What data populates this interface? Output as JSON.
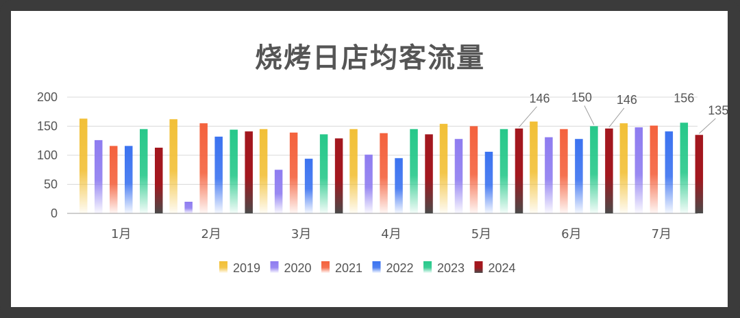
{
  "chart_data": {
    "type": "bar",
    "title": "烧烤日店均客流量",
    "categories": [
      "1月",
      "2月",
      "3月",
      "4月",
      "5月",
      "6月",
      "7月"
    ],
    "ylim": [
      0,
      200
    ],
    "yticks": [
      0,
      50,
      100,
      150,
      200
    ],
    "grid": true,
    "legend_position": "bottom",
    "series": [
      {
        "name": "2019",
        "color": "#F2C037",
        "values": [
          163,
          162,
          145,
          145,
          154,
          158,
          155
        ]
      },
      {
        "name": "2020",
        "color": "#8E7CF0",
        "values": [
          126,
          20,
          75,
          101,
          128,
          131,
          148
        ]
      },
      {
        "name": "2021",
        "color": "#F4623D",
        "values": [
          116,
          155,
          139,
          138,
          150,
          145,
          151
        ]
      },
      {
        "name": "2022",
        "color": "#3B73F0",
        "values": [
          116,
          132,
          94,
          95,
          106,
          128,
          141
        ]
      },
      {
        "name": "2023",
        "color": "#27C88A",
        "values": [
          145,
          144,
          136,
          145,
          145,
          150,
          156
        ]
      },
      {
        "name": "2024",
        "color": "#A3171E",
        "values": [
          113,
          141,
          129,
          136,
          146,
          146,
          135
        ]
      }
    ],
    "data_labels": [
      {
        "category": "5月",
        "series": "2024",
        "text": "146"
      },
      {
        "category": "6月",
        "series": "2023",
        "text": "150"
      },
      {
        "category": "6月",
        "series": "2024",
        "text": "146"
      },
      {
        "category": "7月",
        "series": "2023",
        "text": "156"
      },
      {
        "category": "7月",
        "series": "2024",
        "text": "135"
      }
    ]
  }
}
